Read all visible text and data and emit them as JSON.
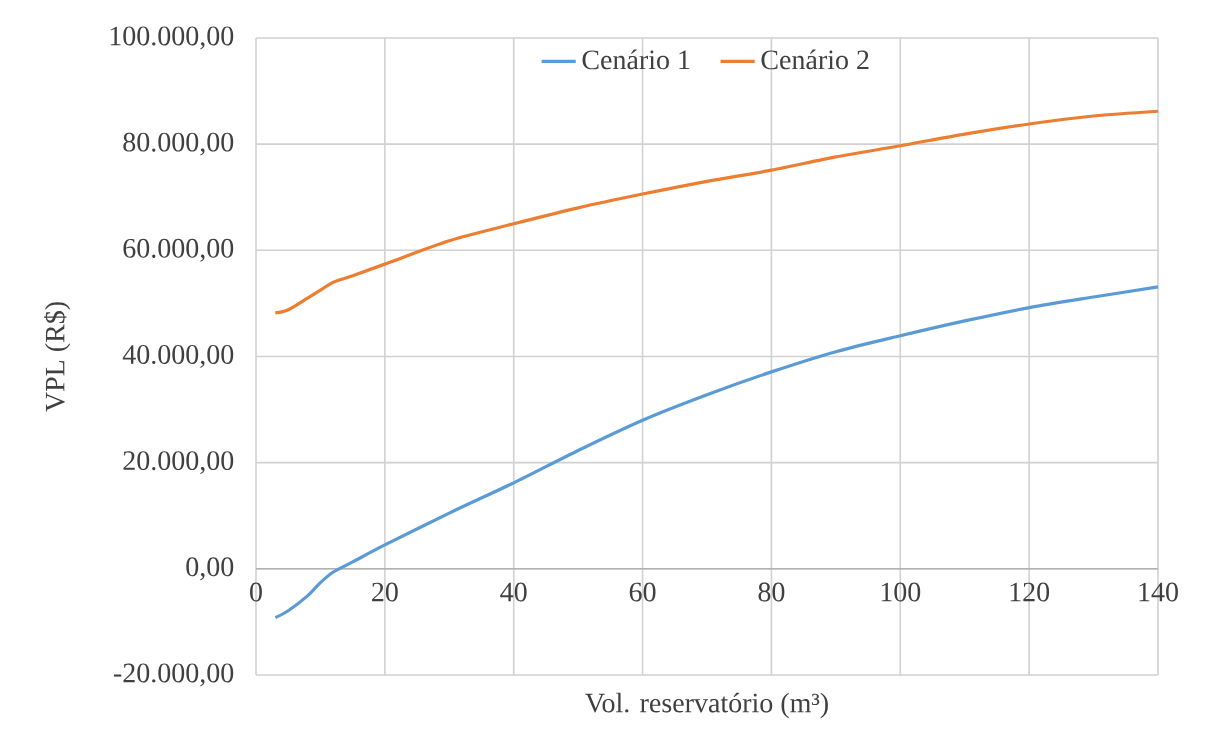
{
  "chart_data": {
    "type": "line",
    "xlabel": "Vol. reservatório (m³)",
    "ylabel": "VPL (R$)",
    "xlim": [
      0,
      140
    ],
    "xticks": [
      0,
      20,
      40,
      60,
      80,
      100,
      120,
      140
    ],
    "ylim": [
      -20000,
      100000
    ],
    "yticks": [
      {
        "value": -20000,
        "label": "-20.000,00"
      },
      {
        "value": 0,
        "label": "0,00"
      },
      {
        "value": 20000,
        "label": "20.000,00"
      },
      {
        "value": 40000,
        "label": "40.000,00"
      },
      {
        "value": 60000,
        "label": "60.000,00"
      },
      {
        "value": 80000,
        "label": "80.000,00"
      },
      {
        "value": 100000,
        "label": "100.000,00"
      }
    ],
    "grid": true,
    "legend": "top",
    "marker": "none",
    "line_style": "solid",
    "x": [
      3,
      5,
      8,
      10,
      12,
      15,
      20,
      30,
      40,
      50,
      60,
      70,
      80,
      90,
      100,
      110,
      120,
      130,
      140
    ],
    "series": [
      {
        "name": "Cenário  1",
        "color": "#5b9bd5",
        "values": [
          -9200,
          -7900,
          -5100,
          -2600,
          -600,
          1300,
          4500,
          10500,
          16200,
          22300,
          28000,
          32800,
          37100,
          40900,
          43900,
          46700,
          49200,
          51200,
          53100
        ]
      },
      {
        "name": "Cenário 2",
        "color": "#ed7d31",
        "values": [
          48200,
          48800,
          51000,
          52500,
          54000,
          55200,
          57400,
          61800,
          65000,
          68000,
          70600,
          73000,
          75100,
          77600,
          79700,
          81900,
          83800,
          85300,
          86200
        ]
      }
    ]
  }
}
